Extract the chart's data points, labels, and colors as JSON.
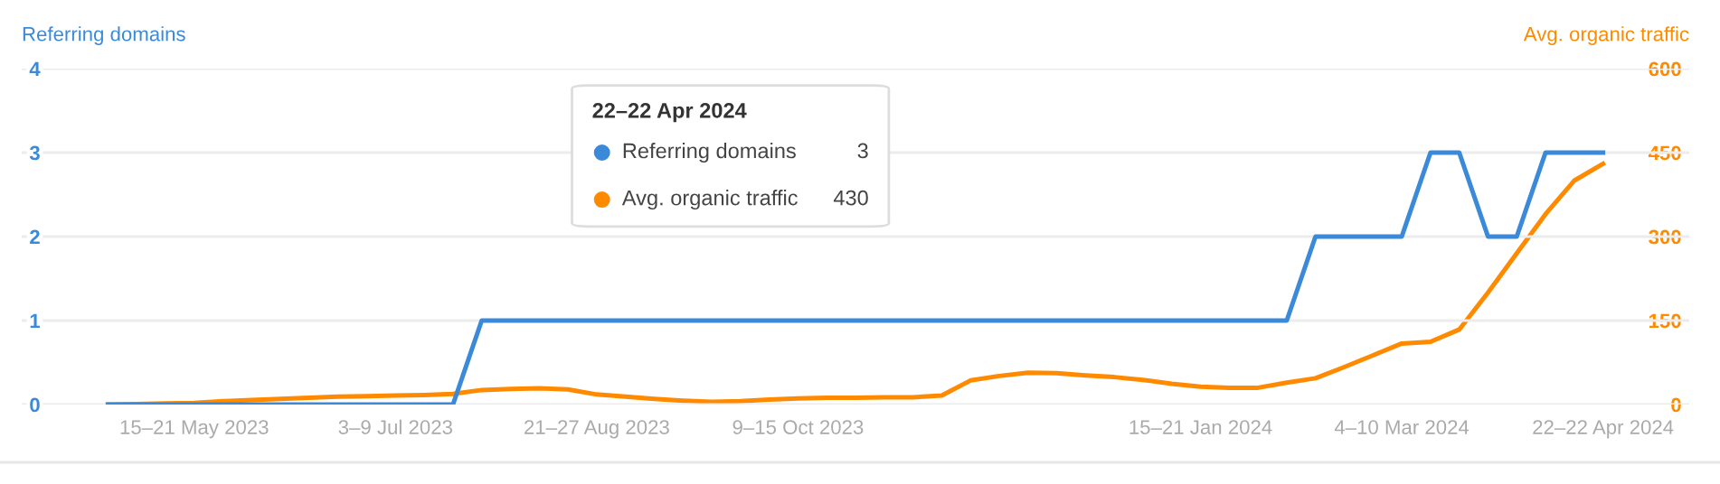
{
  "chart_data": {
    "type": "line",
    "x": [
      "2023-04-24",
      "2023-05-01",
      "2023-05-08",
      "2023-05-15",
      "2023-05-22",
      "2023-05-29",
      "2023-06-05",
      "2023-06-12",
      "2023-06-19",
      "2023-06-26",
      "2023-07-03",
      "2023-07-10",
      "2023-07-17",
      "2023-07-24",
      "2023-07-31",
      "2023-08-07",
      "2023-08-14",
      "2023-08-21",
      "2023-08-28",
      "2023-09-04",
      "2023-09-11",
      "2023-09-18",
      "2023-09-25",
      "2023-10-02",
      "2023-10-09",
      "2023-10-16",
      "2023-10-23",
      "2023-10-30",
      "2023-11-06",
      "2023-11-13",
      "2023-11-20",
      "2023-11-27",
      "2023-12-04",
      "2023-12-11",
      "2023-12-18",
      "2023-12-25",
      "2024-01-01",
      "2024-01-08",
      "2024-01-15",
      "2024-01-22",
      "2024-01-29",
      "2024-02-05",
      "2024-02-12",
      "2024-02-19",
      "2024-02-26",
      "2024-03-04",
      "2024-03-11",
      "2024-03-18",
      "2024-03-25",
      "2024-04-01",
      "2024-04-08",
      "2024-04-15",
      "2024-04-22"
    ],
    "series": [
      {
        "name": "Referring domains",
        "color": "#3b8ad9",
        "values": [
          0,
          0,
          0,
          0,
          0,
          0,
          0,
          0,
          0,
          0,
          0,
          0,
          0,
          1,
          1,
          1,
          1,
          1,
          1,
          1,
          1,
          1,
          1,
          1,
          1,
          1,
          1,
          1,
          1,
          1,
          1,
          1,
          1,
          1,
          1,
          1,
          1,
          1,
          1,
          1,
          1,
          1,
          2,
          2,
          2,
          2,
          3,
          3,
          2,
          2,
          3,
          3,
          3
        ]
      },
      {
        "name": "Avg. organic traffic",
        "color": "#ff8a00",
        "axis": "y2",
        "values": [
          0,
          1,
          2,
          3,
          6,
          8,
          10,
          12,
          14,
          15,
          16,
          17,
          19,
          26,
          28,
          29,
          27,
          18,
          14,
          10,
          7,
          5,
          6,
          9,
          11,
          12,
          12,
          13,
          13,
          16,
          43,
          51,
          57,
          56,
          52,
          49,
          44,
          37,
          32,
          30,
          30,
          39,
          47,
          67,
          88,
          109,
          112,
          134,
          200,
          270,
          340,
          400,
          430
        ]
      }
    ],
    "ylabel": "Referring domains",
    "y2label": "Avg. organic traffic",
    "ylim": [
      0,
      4
    ],
    "yticks": [
      0,
      1,
      2,
      3,
      4
    ],
    "y2lim": [
      0,
      600
    ],
    "y2ticks": [
      0,
      150,
      300,
      450,
      600
    ],
    "xlim": [
      "2023-04-03",
      "2024-05-13"
    ],
    "xticks": [
      {
        "value": "2023-05-15",
        "label": "15–21 May 2023"
      },
      {
        "value": "2023-07-03",
        "label": "3–9 Jul 2023"
      },
      {
        "value": "2023-08-21",
        "label": "21–27 Aug 2023"
      },
      {
        "value": "2023-10-09",
        "label": "9–15 Oct 2023"
      },
      {
        "value": "2024-01-15",
        "label": "15–21 Jan 2024"
      },
      {
        "value": "2024-03-04",
        "label": "4–10 Mar 2024"
      },
      {
        "value": "2024-04-22",
        "label": "22–22 Apr 2024"
      }
    ],
    "annotations": [
      "22–22 Apr 2024",
      "3",
      "430"
    ],
    "grid": "y",
    "legend": "top",
    "marker": "none",
    "line_style": "solid"
  }
}
